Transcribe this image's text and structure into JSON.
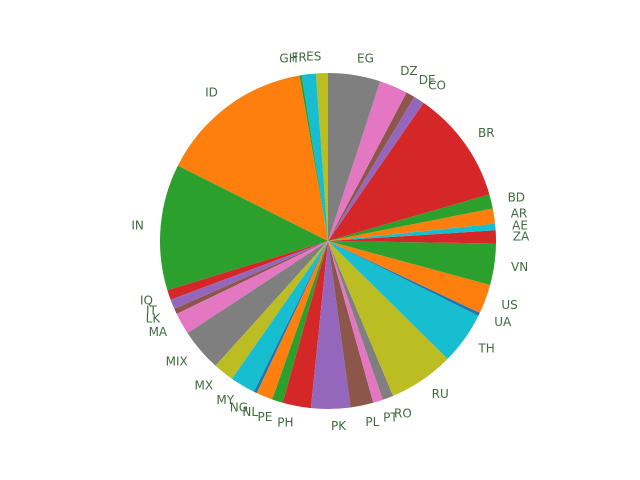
{
  "chart_data": {
    "type": "pie",
    "start_angle_deg": 90,
    "direction": "counterclockwise",
    "slices": [
      {
        "label": "ES",
        "value": 1.1,
        "color": "#bcbd22"
      },
      {
        "label": "FR",
        "value": 1.3,
        "color": "#17becf"
      },
      {
        "label": "GH",
        "value": 0.2,
        "color": "#2ca02c"
      },
      {
        "label": "ID",
        "value": 14.2,
        "color": "#ff7f0e"
      },
      {
        "label": "IN",
        "value": 11.6,
        "color": "#2ca02c"
      },
      {
        "label": "IQ",
        "value": 0.9,
        "color": "#d62728"
      },
      {
        "label": "IT",
        "value": 0.9,
        "color": "#9467bd"
      },
      {
        "label": "LK",
        "value": 0.5,
        "color": "#8c564b"
      },
      {
        "label": "MA",
        "value": 2.0,
        "color": "#e377c2"
      },
      {
        "label": "MIX",
        "value": 3.9,
        "color": "#7f7f7f"
      },
      {
        "label": "MX",
        "value": 1.9,
        "color": "#bcbd22"
      },
      {
        "label": "MY",
        "value": 2.3,
        "color": "#17becf"
      },
      {
        "label": "NG",
        "value": 0.3,
        "color": "#1f77b4"
      },
      {
        "label": "NL",
        "value": 1.5,
        "color": "#ff7f0e"
      },
      {
        "label": "PE",
        "value": 1.0,
        "color": "#2ca02c"
      },
      {
        "label": "PH",
        "value": 2.6,
        "color": "#d62728"
      },
      {
        "label": "PK",
        "value": 3.6,
        "color": "#9467bd"
      },
      {
        "label": "PL",
        "value": 2.1,
        "color": "#8c564b"
      },
      {
        "label": "PT",
        "value": 0.9,
        "color": "#e377c2"
      },
      {
        "label": "RO",
        "value": 1.0,
        "color": "#7f7f7f"
      },
      {
        "label": "RU",
        "value": 6.0,
        "color": "#bcbd22"
      },
      {
        "label": "TH",
        "value": 4.8,
        "color": "#17becf"
      },
      {
        "label": "UA",
        "value": 0.3,
        "color": "#1f77b4"
      },
      {
        "label": "US",
        "value": 2.7,
        "color": "#ff7f0e"
      },
      {
        "label": "VN",
        "value": 3.8,
        "color": "#2ca02c"
      },
      {
        "label": "ZA",
        "value": 1.2,
        "color": "#d62728"
      },
      {
        "label": "AE",
        "value": 0.6,
        "color": "#17becf"
      },
      {
        "label": "AR",
        "value": 1.4,
        "color": "#ff7f0e"
      },
      {
        "label": "BD",
        "value": 1.3,
        "color": "#2ca02c"
      },
      {
        "label": "BR",
        "value": 10.4,
        "color": "#d62728"
      },
      {
        "label": "CO",
        "value": 1.0,
        "color": "#9467bd"
      },
      {
        "label": "DE",
        "value": 0.8,
        "color": "#8c564b"
      },
      {
        "label": "DZ",
        "value": 2.6,
        "color": "#e377c2"
      },
      {
        "label": "EG",
        "value": 4.8,
        "color": "#7f7f7f"
      }
    ]
  }
}
